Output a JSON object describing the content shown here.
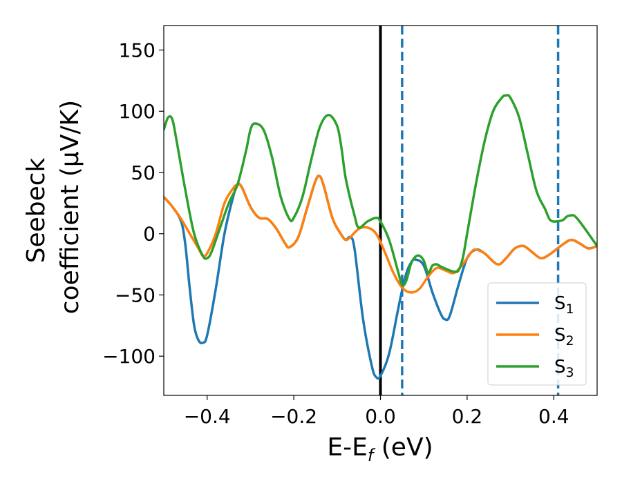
{
  "chart_data": {
    "type": "line",
    "xlabel_main": "E-E",
    "xlabel_sub": "f",
    "xlabel_unit": " (eV)",
    "ylabel_line1": "Seebeck",
    "ylabel_line2": "coefficient  (μV/K)",
    "xlim": [
      -0.5,
      0.5
    ],
    "ylim": [
      -132,
      170
    ],
    "x_ticks": [
      -0.4,
      -0.2,
      0.0,
      0.2,
      0.4
    ],
    "x_tick_labels": [
      "−0.4",
      "−0.2",
      "0.0",
      "0.2",
      "0.4"
    ],
    "y_ticks": [
      -100,
      -50,
      0,
      50,
      100,
      150
    ],
    "y_tick_labels": [
      "−100",
      "−50",
      "0",
      "50",
      "100",
      "150"
    ],
    "grid": false,
    "legend_position": "bottom-right",
    "vlines": [
      {
        "x": 0.0,
        "style": "solid",
        "color": "#000000"
      },
      {
        "x": 0.05,
        "style": "dashed",
        "color": "#1f77b4"
      },
      {
        "x": 0.41,
        "style": "dashed",
        "color": "#1f77b4"
      }
    ],
    "series": [
      {
        "name": "S",
        "sub": "1",
        "color": "#1f77b4",
        "points": [
          [
            -0.5,
            30
          ],
          [
            -0.48,
            22
          ],
          [
            -0.46,
            10
          ],
          [
            -0.45,
            -10
          ],
          [
            -0.44,
            -45
          ],
          [
            -0.43,
            -75
          ],
          [
            -0.42,
            -87
          ],
          [
            -0.41,
            -89
          ],
          [
            -0.4,
            -83
          ],
          [
            -0.38,
            -45
          ],
          [
            -0.36,
            0
          ],
          [
            -0.34,
            30
          ],
          [
            -0.33,
            40
          ],
          [
            -0.32,
            38
          ],
          [
            -0.3,
            22
          ],
          [
            -0.28,
            13
          ],
          [
            -0.26,
            12
          ],
          [
            -0.24,
            4
          ],
          [
            -0.22,
            -8
          ],
          [
            -0.21,
            -11
          ],
          [
            -0.19,
            -3
          ],
          [
            -0.17,
            20
          ],
          [
            -0.15,
            43
          ],
          [
            -0.14,
            47
          ],
          [
            -0.13,
            38
          ],
          [
            -0.11,
            12
          ],
          [
            -0.09,
            -1
          ],
          [
            -0.08,
            -5
          ],
          [
            -0.07,
            -3
          ],
          [
            -0.06,
            -12
          ],
          [
            -0.04,
            -70
          ],
          [
            -0.02,
            -108
          ],
          [
            -0.01,
            -117
          ],
          [
            0.0,
            -116
          ],
          [
            0.02,
            -98
          ],
          [
            0.04,
            -63
          ],
          [
            0.05,
            -46
          ],
          [
            0.06,
            -32
          ],
          [
            0.07,
            -24
          ],
          [
            0.08,
            -21
          ],
          [
            0.1,
            -26
          ],
          [
            0.12,
            -48
          ],
          [
            0.14,
            -66
          ],
          [
            0.15,
            -70
          ],
          [
            0.16,
            -67
          ],
          [
            0.18,
            -42
          ],
          [
            0.2,
            -20
          ],
          [
            0.22,
            -13
          ],
          [
            0.24,
            -16
          ],
          [
            0.27,
            -25
          ],
          [
            0.29,
            -20
          ],
          [
            0.31,
            -12
          ],
          [
            0.33,
            -10
          ],
          [
            0.35,
            -15
          ],
          [
            0.37,
            -20
          ],
          [
            0.39,
            -17
          ],
          [
            0.42,
            -9
          ],
          [
            0.44,
            -5
          ],
          [
            0.46,
            -8
          ],
          [
            0.48,
            -12
          ],
          [
            0.5,
            -10
          ]
        ]
      },
      {
        "name": "S",
        "sub": "2",
        "color": "#ff7f0e",
        "points": [
          [
            -0.5,
            30
          ],
          [
            -0.48,
            22
          ],
          [
            -0.46,
            12
          ],
          [
            -0.44,
            0
          ],
          [
            -0.42,
            -12
          ],
          [
            -0.41,
            -18
          ],
          [
            -0.4,
            -16
          ],
          [
            -0.38,
            0
          ],
          [
            -0.36,
            25
          ],
          [
            -0.34,
            37
          ],
          [
            -0.33,
            40
          ],
          [
            -0.32,
            38
          ],
          [
            -0.3,
            22
          ],
          [
            -0.28,
            13
          ],
          [
            -0.26,
            12
          ],
          [
            -0.24,
            4
          ],
          [
            -0.22,
            -8
          ],
          [
            -0.21,
            -11
          ],
          [
            -0.19,
            -3
          ],
          [
            -0.17,
            20
          ],
          [
            -0.15,
            43
          ],
          [
            -0.14,
            47
          ],
          [
            -0.13,
            38
          ],
          [
            -0.11,
            12
          ],
          [
            -0.09,
            -1
          ],
          [
            -0.08,
            -5
          ],
          [
            -0.07,
            -3
          ],
          [
            -0.05,
            4
          ],
          [
            -0.03,
            5
          ],
          [
            -0.01,
            0
          ],
          [
            0.01,
            -15
          ],
          [
            0.03,
            -32
          ],
          [
            0.05,
            -44
          ],
          [
            0.07,
            -48
          ],
          [
            0.09,
            -45
          ],
          [
            0.11,
            -35
          ],
          [
            0.13,
            -28
          ],
          [
            0.15,
            -30
          ],
          [
            0.17,
            -32
          ],
          [
            0.19,
            -25
          ],
          [
            0.21,
            -15
          ],
          [
            0.22,
            -13
          ],
          [
            0.24,
            -16
          ],
          [
            0.27,
            -25
          ],
          [
            0.29,
            -20
          ],
          [
            0.31,
            -12
          ],
          [
            0.33,
            -10
          ],
          [
            0.35,
            -15
          ],
          [
            0.37,
            -20
          ],
          [
            0.39,
            -17
          ],
          [
            0.42,
            -9
          ],
          [
            0.44,
            -5
          ],
          [
            0.46,
            -8
          ],
          [
            0.48,
            -12
          ],
          [
            0.5,
            -10
          ]
        ]
      },
      {
        "name": "S",
        "sub": "3",
        "color": "#2ca02c",
        "points": [
          [
            -0.5,
            85
          ],
          [
            -0.49,
            95
          ],
          [
            -0.48,
            93
          ],
          [
            -0.47,
            75
          ],
          [
            -0.45,
            35
          ],
          [
            -0.43,
            0
          ],
          [
            -0.41,
            -18
          ],
          [
            -0.4,
            -20
          ],
          [
            -0.39,
            -15
          ],
          [
            -0.37,
            5
          ],
          [
            -0.35,
            25
          ],
          [
            -0.33,
            40
          ],
          [
            -0.31,
            68
          ],
          [
            -0.3,
            85
          ],
          [
            -0.29,
            90
          ],
          [
            -0.27,
            85
          ],
          [
            -0.25,
            62
          ],
          [
            -0.23,
            30
          ],
          [
            -0.21,
            12
          ],
          [
            -0.2,
            13
          ],
          [
            -0.18,
            30
          ],
          [
            -0.16,
            60
          ],
          [
            -0.14,
            87
          ],
          [
            -0.12,
            97
          ],
          [
            -0.1,
            88
          ],
          [
            -0.09,
            70
          ],
          [
            -0.08,
            45
          ],
          [
            -0.06,
            15
          ],
          [
            -0.05,
            5
          ],
          [
            -0.03,
            10
          ],
          [
            -0.01,
            13
          ],
          [
            0.0,
            10
          ],
          [
            0.02,
            -5
          ],
          [
            0.04,
            -30
          ],
          [
            0.05,
            -42
          ],
          [
            0.06,
            -38
          ],
          [
            0.07,
            -25
          ],
          [
            0.08,
            -19
          ],
          [
            0.09,
            -18
          ],
          [
            0.1,
            -22
          ],
          [
            0.11,
            -32
          ],
          [
            0.12,
            -26
          ],
          [
            0.13,
            -25
          ],
          [
            0.14,
            -27
          ],
          [
            0.16,
            -30
          ],
          [
            0.17,
            -31
          ],
          [
            0.18,
            -30
          ],
          [
            0.19,
            -20
          ],
          [
            0.2,
            0
          ],
          [
            0.22,
            40
          ],
          [
            0.24,
            75
          ],
          [
            0.26,
            100
          ],
          [
            0.28,
            111
          ],
          [
            0.29,
            113
          ],
          [
            0.3,
            111
          ],
          [
            0.32,
            95
          ],
          [
            0.34,
            65
          ],
          [
            0.36,
            35
          ],
          [
            0.38,
            20
          ],
          [
            0.39,
            12
          ],
          [
            0.4,
            10
          ],
          [
            0.42,
            11
          ],
          [
            0.43,
            14
          ],
          [
            0.44,
            15
          ],
          [
            0.45,
            14
          ],
          [
            0.47,
            5
          ],
          [
            0.49,
            -5
          ],
          [
            0.5,
            -10
          ]
        ]
      }
    ]
  }
}
